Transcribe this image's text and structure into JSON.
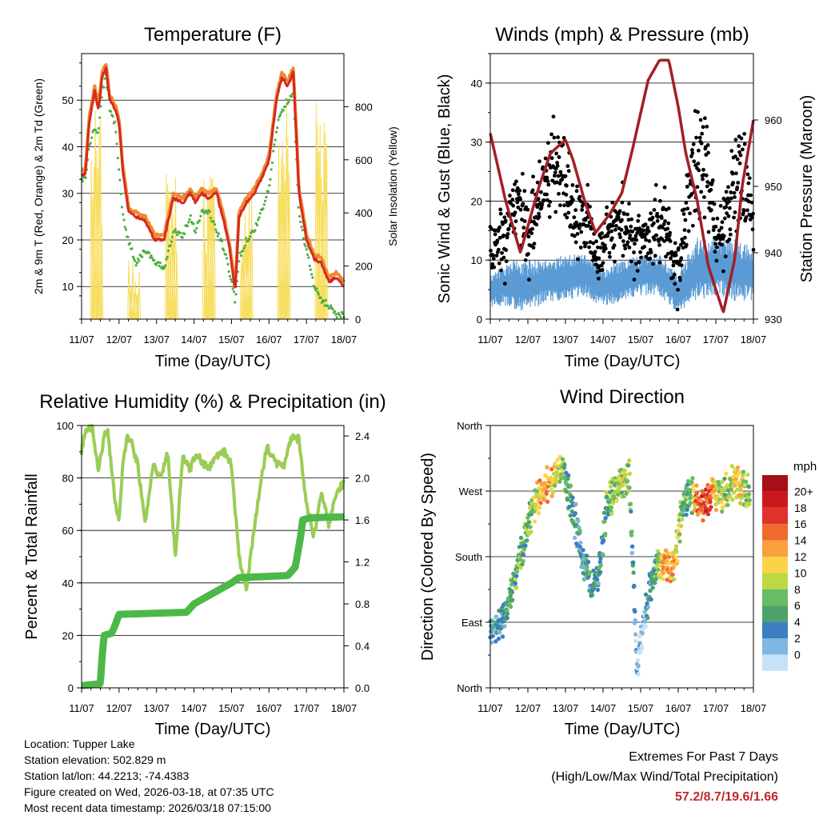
{
  "colors": {
    "temp_red": "#d42b1e",
    "temp_orange": "#f08a30",
    "dew_green": "#4fae3f",
    "solar_yellow": "#f7dd5c",
    "wind_blue": "#5b9bd5",
    "gust_black": "#000000",
    "pressure_maroon": "#a31f24",
    "rh_green": "#9acd55",
    "precip_green": "#4cb848",
    "grid": "#000000"
  },
  "chart_data": [
    {
      "id": "temperature",
      "type": "line",
      "title": "Temperature (F)",
      "xlabel": "Time (Day/UTC)",
      "ylabel": "2m & 9m T (Red, Orange) & 2m Td (Green)",
      "ylabel_right": "Solar Insolation (Yellow)",
      "x_ticks": [
        "11/07",
        "12/07",
        "13/07",
        "14/07",
        "15/07",
        "16/07",
        "17/07",
        "18/07"
      ],
      "xlim": [
        0,
        7
      ],
      "ylim": [
        3,
        60
      ],
      "yticks": [
        10,
        20,
        30,
        40,
        50
      ],
      "ylim_right": [
        0,
        1000
      ],
      "yticks_right": [
        0,
        200,
        400,
        600,
        800
      ],
      "grid": true,
      "series": [
        {
          "name": "2m T",
          "color": "temp_red",
          "style": "line",
          "x": [
            0,
            0.1,
            0.2,
            0.35,
            0.45,
            0.55,
            0.65,
            0.75,
            0.9,
            1.0,
            1.1,
            1.25,
            1.45,
            1.7,
            1.95,
            2.2,
            2.45,
            2.7,
            2.9,
            3.05,
            3.2,
            3.4,
            3.6,
            3.8,
            3.95,
            4.1,
            4.2,
            4.4,
            4.6,
            4.8,
            5.0,
            5.2,
            5.35,
            5.5,
            5.65,
            5.8,
            6.0,
            6.2,
            6.4,
            6.6,
            6.8,
            7.0
          ],
          "y": [
            34,
            34,
            45,
            52,
            48,
            55,
            57,
            50,
            48,
            45,
            35,
            26,
            25,
            24,
            20,
            20,
            29,
            28,
            30,
            28,
            30,
            29,
            30,
            24,
            18,
            9,
            25,
            28,
            30,
            33,
            37,
            50,
            55,
            53,
            56,
            30,
            20,
            16,
            15,
            11,
            12,
            10
          ]
        },
        {
          "name": "9m T",
          "color": "temp_orange",
          "style": "line",
          "x": [
            0,
            0.1,
            0.2,
            0.35,
            0.45,
            0.55,
            0.65,
            0.75,
            0.9,
            1.0,
            1.1,
            1.25,
            1.45,
            1.7,
            1.95,
            2.2,
            2.45,
            2.7,
            2.9,
            3.05,
            3.2,
            3.4,
            3.6,
            3.8,
            3.95,
            4.1,
            4.2,
            4.4,
            4.6,
            4.8,
            5.0,
            5.2,
            5.35,
            5.5,
            5.65,
            5.8,
            6.0,
            6.2,
            6.4,
            6.6,
            6.8,
            7.0
          ],
          "y": [
            35,
            35,
            46,
            53,
            49,
            56,
            58,
            51,
            49,
            46,
            36,
            27,
            26,
            25,
            21,
            21,
            30,
            29,
            31,
            29,
            31,
            30,
            31,
            25,
            19,
            10,
            26,
            29,
            31,
            34,
            38,
            51,
            56,
            54,
            57,
            31,
            21,
            17,
            16,
            12,
            13,
            11
          ]
        },
        {
          "name": "2m Td",
          "color": "dew_green",
          "style": "dots",
          "x": [
            0,
            0.1,
            0.2,
            0.35,
            0.45,
            0.55,
            0.65,
            0.75,
            0.9,
            1.0,
            1.1,
            1.25,
            1.45,
            1.7,
            1.95,
            2.2,
            2.45,
            2.7,
            2.9,
            3.05,
            3.2,
            3.4,
            3.6,
            3.8,
            3.95,
            4.1,
            4.2,
            4.4,
            4.6,
            4.8,
            5.0,
            5.2,
            5.35,
            5.5,
            5.65,
            5.8,
            6.0,
            6.2,
            6.4,
            6.6,
            6.8,
            7.0
          ],
          "y": [
            33,
            33,
            40,
            44,
            43,
            52,
            55,
            48,
            45,
            35,
            25,
            20,
            15,
            18,
            15,
            14,
            22,
            21,
            25,
            22,
            26,
            26,
            22,
            18,
            13,
            7,
            16,
            20,
            22,
            26,
            31,
            44,
            48,
            50,
            52,
            25,
            18,
            10,
            7,
            6,
            4,
            4
          ]
        },
        {
          "name": "Solar Insolation",
          "color": "solar_yellow",
          "style": "spikes",
          "axis": "right",
          "days": [
            0.4,
            1.4,
            2.4,
            3.4,
            4.4,
            5.4,
            6.4
          ],
          "peaks": [
            790,
            220,
            570,
            590,
            500,
            900,
            980
          ]
        }
      ]
    },
    {
      "id": "winds",
      "type": "scatter",
      "title": "Winds (mph) & Pressure (mb)",
      "xlabel": "Time (Day/UTC)",
      "ylabel": "Sonic Wind & Gust (Blue, Black)",
      "ylabel_right": "Station Pressure (Maroon)",
      "x_ticks": [
        "11/07",
        "12/07",
        "13/07",
        "14/07",
        "15/07",
        "16/07",
        "17/07",
        "18/07"
      ],
      "xlim": [
        0,
        7
      ],
      "ylim": [
        0,
        45
      ],
      "yticks": [
        0,
        10,
        20,
        30,
        40
      ],
      "ylim_right": [
        930,
        970
      ],
      "yticks_right": [
        930,
        940,
        950,
        960
      ],
      "grid": true,
      "series": [
        {
          "name": "Sonic Wind",
          "color": "wind_blue",
          "style": "band",
          "x": [
            0,
            0.5,
            1,
            1.5,
            2,
            2.5,
            3,
            3.5,
            4,
            4.5,
            5,
            5.5,
            6,
            6.5,
            7
          ],
          "low": [
            2,
            2,
            1,
            3,
            3,
            4,
            2,
            3,
            4,
            4,
            1,
            3,
            4,
            3,
            3
          ],
          "high": [
            8,
            10,
            10,
            10,
            11,
            11,
            9,
            10,
            11,
            11,
            8,
            14,
            14,
            14,
            12
          ]
        },
        {
          "name": "Gust",
          "color": "gust_black",
          "style": "dots",
          "x": [
            0,
            0.25,
            0.5,
            0.75,
            1,
            1.25,
            1.5,
            1.75,
            2,
            2.25,
            2.5,
            2.75,
            3,
            3.25,
            3.5,
            3.75,
            4,
            4.25,
            4.5,
            4.75,
            5,
            5.25,
            5.5,
            5.75,
            6,
            6.25,
            6.5,
            6.75,
            7
          ],
          "y": [
            10,
            13,
            15,
            21,
            13,
            19,
            24,
            28,
            22,
            17,
            18,
            12,
            12,
            15,
            18,
            13,
            12,
            15,
            17,
            14,
            7,
            20,
            28,
            26,
            12,
            16,
            24,
            25,
            16
          ],
          "spread": [
            5,
            6,
            7,
            7,
            6,
            6,
            7,
            8,
            7,
            6,
            6,
            5,
            5,
            6,
            6,
            5,
            5,
            6,
            6,
            5,
            5,
            7,
            9,
            8,
            6,
            7,
            8,
            8,
            6
          ]
        },
        {
          "name": "Station Pressure",
          "color": "pressure_maroon",
          "style": "line",
          "axis": "right",
          "x": [
            0,
            0.4,
            0.8,
            1.0,
            1.3,
            1.6,
            2.0,
            2.2,
            2.5,
            2.8,
            3.2,
            3.5,
            3.8,
            4.2,
            4.5,
            4.75,
            5.0,
            5.2,
            5.5,
            5.8,
            6.2,
            6.5,
            6.7,
            7.0
          ],
          "y": [
            958,
            948,
            940,
            944,
            950,
            955,
            957,
            954,
            948,
            943,
            946,
            949,
            956,
            966,
            969,
            969,
            962,
            955,
            948,
            938,
            931,
            939,
            950,
            960
          ]
        }
      ]
    },
    {
      "id": "humidity",
      "type": "line",
      "title": "Relative Humidity (%) & Precipitation (in)",
      "xlabel": "Time (Day/UTC)",
      "ylabel": "Percent & Total Rainfall",
      "x_ticks": [
        "11/07",
        "12/07",
        "13/07",
        "14/07",
        "15/07",
        "16/07",
        "17/07",
        "18/07"
      ],
      "xlim": [
        0,
        7
      ],
      "ylim": [
        0,
        100
      ],
      "yticks": [
        0,
        20,
        40,
        60,
        80,
        100
      ],
      "ylim_right": [
        0,
        2.5
      ],
      "yticks_right": [
        "0.0",
        "0.4",
        "0.8",
        "1.2",
        "1.6",
        "2.0",
        "2.4"
      ],
      "grid": true,
      "series": [
        {
          "name": "Relative Humidity",
          "color": "rh_green",
          "style": "line",
          "x": [
            0,
            0.1,
            0.3,
            0.45,
            0.6,
            0.7,
            0.9,
            1.0,
            1.1,
            1.2,
            1.3,
            1.5,
            1.7,
            1.9,
            2.1,
            2.3,
            2.5,
            2.7,
            2.9,
            3.05,
            3.25,
            3.4,
            3.6,
            3.8,
            4.0,
            4.2,
            4.4,
            4.6,
            4.8,
            4.95,
            5.2,
            5.4,
            5.6,
            5.8,
            6.0,
            6.2,
            6.4,
            6.6,
            6.8,
            7.0
          ],
          "y": [
            90,
            98,
            99,
            82,
            96,
            98,
            70,
            64,
            85,
            95,
            95,
            85,
            62,
            85,
            80,
            90,
            50,
            88,
            83,
            90,
            85,
            84,
            88,
            90,
            85,
            50,
            38,
            60,
            80,
            92,
            85,
            85,
            95,
            95,
            70,
            58,
            75,
            62,
            75,
            78
          ]
        },
        {
          "name": "Total Precipitation",
          "color": "precip_green",
          "style": "step",
          "axis": "right",
          "x": [
            0,
            0.5,
            0.55,
            0.6,
            0.8,
            0.9,
            1.0,
            2.8,
            3.0,
            3.5,
            4.0,
            4.2,
            5.5,
            5.7,
            5.85,
            5.9,
            6.1,
            7.0
          ],
          "y": [
            0.02,
            0.04,
            0.3,
            0.5,
            0.52,
            0.6,
            0.7,
            0.72,
            0.8,
            0.9,
            1.0,
            1.05,
            1.07,
            1.15,
            1.45,
            1.6,
            1.62,
            1.63
          ]
        }
      ]
    },
    {
      "id": "direction",
      "type": "scatter",
      "title": "Wind Direction",
      "xlabel": "Time (Day/UTC)",
      "ylabel": "Direction (Colored By Speed)",
      "x_ticks": [
        "11/07",
        "12/07",
        "13/07",
        "14/07",
        "15/07",
        "16/07",
        "17/07",
        "18/07"
      ],
      "xlim": [
        0,
        7
      ],
      "ylim": [
        0,
        360
      ],
      "ytick_labels": [
        "North",
        "East",
        "South",
        "West",
        "North"
      ],
      "yticks": [
        0,
        90,
        180,
        270,
        360
      ],
      "grid": true,
      "legend_title": "mph",
      "legend_labels": [
        "20+",
        "18",
        "16",
        "14",
        "12",
        "10",
        "8",
        "6",
        "4",
        "2",
        "0"
      ],
      "legend_colors": [
        "#a50f15",
        "#cb181d",
        "#e0312a",
        "#ef6a2f",
        "#f9a03f",
        "#fdd24b",
        "#bed844",
        "#66bd63",
        "#4da26b",
        "#3b7fc0",
        "#7fb6e2",
        "#c6e2f7"
      ],
      "series": [
        {
          "name": "Wind Direction",
          "x": [
            0,
            0.3,
            0.5,
            0.7,
            0.9,
            1.1,
            1.3,
            1.5,
            1.7,
            1.9,
            2.1,
            2.3,
            2.5,
            2.7,
            2.9,
            3.1,
            3.3,
            3.5,
            3.7,
            3.9,
            4.1,
            4.3,
            4.5,
            4.7,
            4.9,
            5.1,
            5.3,
            5.5,
            5.7,
            5.9,
            6.1,
            6.3,
            6.5,
            6.7,
            6.9
          ],
          "y": [
            80,
            90,
            120,
            160,
            200,
            240,
            265,
            275,
            290,
            305,
            260,
            220,
            170,
            140,
            160,
            250,
            270,
            285,
            290,
            30,
            95,
            150,
            170,
            165,
            165,
            250,
            270,
            255,
            250,
            270,
            260,
            270,
            285,
            275,
            265
          ],
          "speed": [
            3,
            4,
            6,
            8,
            7,
            8,
            12,
            14,
            12,
            10,
            5,
            4,
            5,
            6,
            5,
            7,
            8,
            9,
            8,
            1,
            2,
            5,
            10,
            14,
            13,
            7,
            6,
            16,
            18,
            15,
            10,
            9,
            11,
            12,
            8
          ]
        }
      ]
    }
  ],
  "info": {
    "location": "Location: Tupper Lake",
    "elevation": "Station elevation: 502.829 m",
    "latlon": "Station lat/lon: 44.2213; -74.4383",
    "created": "Figure created on Wed, 2026-03-18, at 07:35 UTC",
    "recent": "Most recent data timestamp: 2026/03/18 07:15:00"
  },
  "extremes": {
    "title": "Extremes For Past 7 Days",
    "subtitle": "(High/Low/Max Wind/Total Precipitation)",
    "values": "57.2/8.7/19.6/1.66"
  }
}
